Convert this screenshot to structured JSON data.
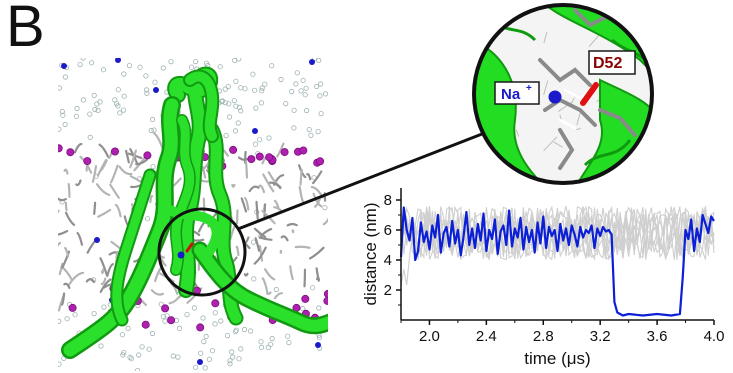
{
  "panel_label": "B",
  "zoom_labels": {
    "ion": "Na",
    "ion_charge": "+",
    "residue": "D52"
  },
  "colors": {
    "protein": "#22dd22",
    "ion": "#1a1acc",
    "residue": "#8b0000",
    "lipid": "#9a9a9a",
    "headgroup": "#b020b0",
    "trace_highlight": "#0b1fd6",
    "trace_background": "#cfcfcf"
  },
  "chart_data": {
    "type": "line",
    "xlabel": "time (μs)",
    "ylabel": "distance (nm)",
    "xlim": [
      1.8,
      4.0
    ],
    "ylim": [
      0,
      8.8
    ],
    "xticks": [
      "2.0",
      "2.4",
      "2.8",
      "3.2",
      "3.6",
      "4.0"
    ],
    "yticks": [
      "2",
      "4",
      "6",
      "8"
    ],
    "series": [
      {
        "highlight": true,
        "x": [
          1.8,
          1.82,
          1.84,
          1.86,
          1.88,
          1.9,
          1.92,
          1.94,
          1.96,
          1.98,
          2.0,
          2.02,
          2.04,
          2.06,
          2.08,
          2.1,
          2.12,
          2.14,
          2.16,
          2.18,
          2.2,
          2.22,
          2.24,
          2.26,
          2.28,
          2.3,
          2.32,
          2.34,
          2.36,
          2.38,
          2.4,
          2.42,
          2.44,
          2.46,
          2.48,
          2.5,
          2.52,
          2.54,
          2.56,
          2.58,
          2.6,
          2.62,
          2.64,
          2.66,
          2.68,
          2.7,
          2.72,
          2.74,
          2.76,
          2.78,
          2.8,
          2.82,
          2.84,
          2.86,
          2.88,
          2.9,
          2.92,
          2.94,
          2.96,
          2.98,
          3.0,
          3.02,
          3.04,
          3.06,
          3.08,
          3.1,
          3.12,
          3.14,
          3.16,
          3.18,
          3.2,
          3.22,
          3.24,
          3.26,
          3.28,
          3.3,
          3.32,
          3.34,
          3.36,
          3.4,
          3.5,
          3.6,
          3.7,
          3.76,
          3.78,
          3.8,
          3.82,
          3.84,
          3.86,
          3.88,
          3.9,
          3.92,
          3.94,
          3.96,
          3.98,
          4.0
        ],
        "y": [
          4.2,
          7.5,
          6.0,
          5.3,
          6.8,
          4.0,
          4.6,
          6.5,
          5.2,
          5.9,
          4.7,
          6.3,
          5.5,
          7.0,
          4.5,
          5.8,
          6.2,
          4.9,
          6.6,
          5.1,
          6.0,
          4.3,
          5.6,
          7.2,
          5.0,
          6.1,
          4.8,
          6.4,
          5.3,
          7.1,
          4.6,
          6.0,
          5.4,
          6.7,
          4.4,
          5.9,
          6.3,
          5.0,
          7.3,
          4.9,
          6.1,
          5.5,
          6.8,
          4.7,
          6.2,
          5.2,
          6.0,
          4.5,
          6.5,
          5.1,
          6.9,
          4.8,
          6.2,
          5.6,
          6.0,
          4.6,
          6.4,
          5.3,
          6.1,
          5.0,
          6.3,
          5.7,
          4.9,
          6.2,
          5.5,
          6.0,
          5.8,
          6.3,
          4.8,
          6.1,
          5.6,
          6.2,
          5.9,
          6.0,
          5.7,
          1.2,
          0.5,
          0.4,
          0.3,
          0.4,
          0.3,
          0.4,
          0.3,
          0.4,
          2.8,
          6.0,
          5.4,
          6.7,
          4.6,
          6.1,
          5.2,
          7.0,
          6.4,
          5.8,
          6.9,
          6.6
        ]
      }
    ]
  }
}
